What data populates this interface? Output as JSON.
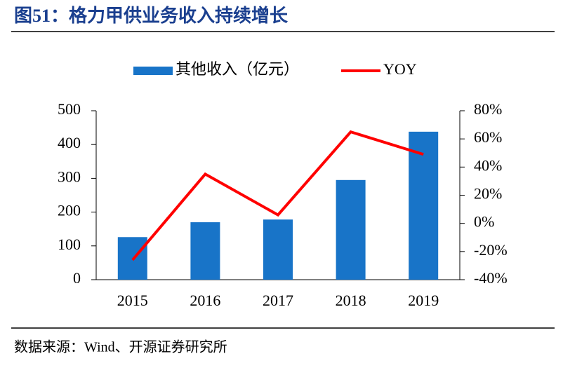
{
  "title": "图51：格力甲供业务收入持续增长",
  "source": "数据来源：Wind、开源证券研究所",
  "chart_data": {
    "type": "bar",
    "categories": [
      "2015",
      "2016",
      "2017",
      "2018",
      "2019"
    ],
    "series": [
      {
        "name": "其他收入（亿元）",
        "type": "bar",
        "color": "#1874c8",
        "values": [
          126,
          170,
          178,
          295,
          438
        ]
      },
      {
        "name": "YOY",
        "type": "line",
        "axis": "y2",
        "color": "#ff0000",
        "values": [
          -26,
          35,
          6,
          65,
          49
        ]
      }
    ],
    "ylim": [
      0,
      500
    ],
    "yticks": [
      0,
      100,
      200,
      300,
      400,
      500
    ],
    "y2lim": [
      -40,
      80
    ],
    "y2ticks": [
      {
        "value": -40,
        "label": "-40%"
      },
      {
        "value": -20,
        "label": "-20%"
      },
      {
        "value": 0,
        "label": "0%"
      },
      {
        "value": 20,
        "label": "20%"
      },
      {
        "value": 40,
        "label": "40%"
      },
      {
        "value": 60,
        "label": "60%"
      },
      {
        "value": 80,
        "label": "80%"
      }
    ],
    "legend": "top",
    "grid": false
  }
}
